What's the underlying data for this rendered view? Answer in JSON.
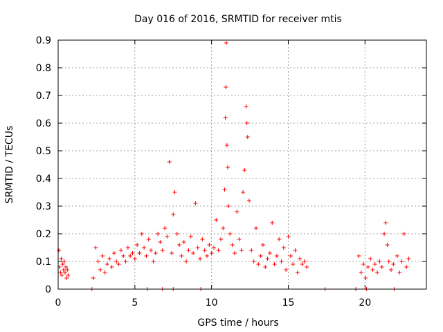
{
  "chart_data": {
    "type": "scatter",
    "title": "Day 016 of 2016, SRMTID for receiver mtis",
    "xlabel": "GPS time / hours",
    "ylabel": "SRMTID / TECUs",
    "xlim": [
      0,
      24
    ],
    "ylim": [
      0,
      0.9
    ],
    "xticks": [
      0,
      5,
      10,
      15,
      20
    ],
    "xtick_labels": [
      "0",
      "5",
      "10",
      "15",
      "20"
    ],
    "yticks": [
      0,
      0.1,
      0.2,
      0.3,
      0.4,
      0.5,
      0.6,
      0.7,
      0.8,
      0.9
    ],
    "ytick_labels": [
      "0",
      "0.1",
      "0.2",
      "0.3",
      "0.4",
      "0.5",
      "0.6",
      "0.7",
      "0.8",
      "0.9"
    ],
    "grid": true,
    "marker": "+",
    "color": "#ff0000",
    "series": [
      {
        "name": "SRMTID",
        "x": [
          0.05,
          0.1,
          0.15,
          0.2,
          0.25,
          0.3,
          0.35,
          0.4,
          0.45,
          0.5,
          0.55,
          0.6,
          0.65,
          2.3,
          2.45,
          2.6,
          2.75,
          2.9,
          3.05,
          3.2,
          3.35,
          3.5,
          3.65,
          3.8,
          3.95,
          4.1,
          4.25,
          4.4,
          4.55,
          4.7,
          4.85,
          5.0,
          5.15,
          5.3,
          5.45,
          5.6,
          5.75,
          5.9,
          6.05,
          6.2,
          6.35,
          6.5,
          6.65,
          6.8,
          6.95,
          7.1,
          7.25,
          7.4,
          7.5,
          7.6,
          7.75,
          7.9,
          8.05,
          8.2,
          8.35,
          8.5,
          8.65,
          8.8,
          8.95,
          9.1,
          9.25,
          9.4,
          9.55,
          9.7,
          9.85,
          10.0,
          10.15,
          10.3,
          10.45,
          10.6,
          10.75,
          10.85,
          10.9,
          10.93,
          10.96,
          11.0,
          11.05,
          11.1,
          11.2,
          11.35,
          11.5,
          11.65,
          11.8,
          11.95,
          12.05,
          12.15,
          12.25,
          12.3,
          12.35,
          12.45,
          12.6,
          12.75,
          12.9,
          13.05,
          13.2,
          13.35,
          13.5,
          13.65,
          13.8,
          13.95,
          14.1,
          14.25,
          14.4,
          14.55,
          14.7,
          14.85,
          15.0,
          15.15,
          15.3,
          15.45,
          15.6,
          15.75,
          15.9,
          16.05,
          16.2,
          19.6,
          19.75,
          19.9,
          20.05,
          20.2,
          20.35,
          20.5,
          20.65,
          20.8,
          20.95,
          21.1,
          21.25,
          21.35,
          21.45,
          21.55,
          21.7,
          21.85,
          22.1,
          22.25,
          22.4,
          22.55,
          22.7,
          22.85,
          2.2,
          5.8,
          6.8,
          7.5,
          9.3,
          17.4,
          19.4,
          20.1,
          21.9
        ],
        "y": [
          0.14,
          0.08,
          0.06,
          0.11,
          0.05,
          0.09,
          0.07,
          0.1,
          0.06,
          0.08,
          0.04,
          0.07,
          0.05,
          0.04,
          0.15,
          0.1,
          0.07,
          0.12,
          0.06,
          0.09,
          0.11,
          0.08,
          0.13,
          0.1,
          0.09,
          0.14,
          0.12,
          0.1,
          0.15,
          0.12,
          0.13,
          0.11,
          0.16,
          0.13,
          0.2,
          0.15,
          0.12,
          0.18,
          0.14,
          0.1,
          0.13,
          0.2,
          0.17,
          0.14,
          0.22,
          0.19,
          0.46,
          0.13,
          0.27,
          0.35,
          0.2,
          0.16,
          0.12,
          0.17,
          0.1,
          0.14,
          0.19,
          0.13,
          0.31,
          0.15,
          0.11,
          0.18,
          0.14,
          0.12,
          0.16,
          0.13,
          0.15,
          0.25,
          0.14,
          0.18,
          0.22,
          0.36,
          0.62,
          0.73,
          0.89,
          0.52,
          0.44,
          0.3,
          0.2,
          0.16,
          0.13,
          0.28,
          0.18,
          0.14,
          0.35,
          0.43,
          0.66,
          0.6,
          0.55,
          0.32,
          0.14,
          0.1,
          0.22,
          0.09,
          0.12,
          0.16,
          0.08,
          0.11,
          0.13,
          0.24,
          0.09,
          0.12,
          0.18,
          0.1,
          0.15,
          0.07,
          0.19,
          0.12,
          0.09,
          0.14,
          0.06,
          0.11,
          0.09,
          0.1,
          0.08,
          0.12,
          0.06,
          0.09,
          0.04,
          0.08,
          0.11,
          0.07,
          0.09,
          0.06,
          0.1,
          0.08,
          0.2,
          0.24,
          0.16,
          0.1,
          0.07,
          0.09,
          0.12,
          0.06,
          0.1,
          0.2,
          0.08,
          0.11,
          0.0,
          0.0,
          0.0,
          0.0,
          0.0,
          0.0,
          0.0,
          0.0,
          0.0
        ]
      }
    ]
  }
}
